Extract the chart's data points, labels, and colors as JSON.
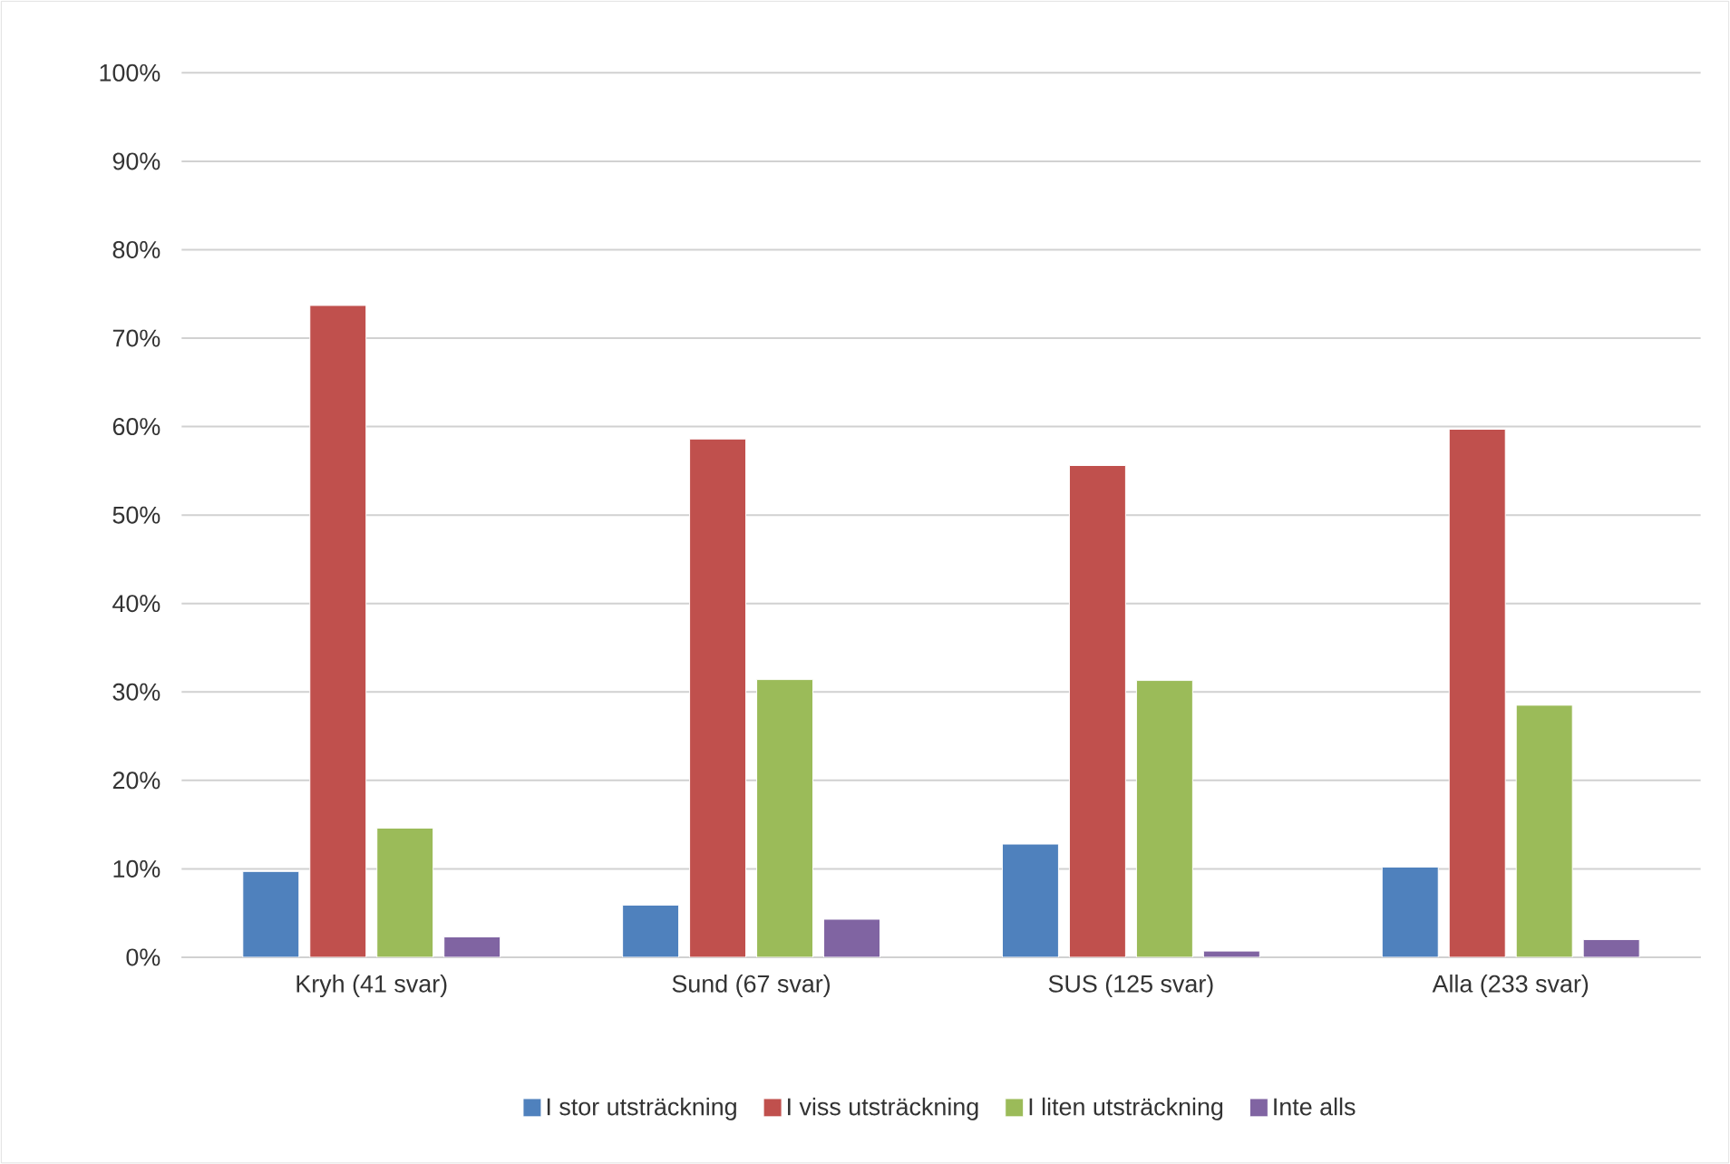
{
  "chart_data": {
    "type": "bar",
    "categories": [
      "Kryh (41 svar)",
      "Sund (67 svar)",
      "SUS (125 svar)",
      "Alla (233 svar)"
    ],
    "series": [
      {
        "name": "I stor utsträckning",
        "color": "#4f81bd",
        "values": [
          9.7,
          5.9,
          12.8,
          10.2
        ]
      },
      {
        "name": "I viss utsträckning",
        "color": "#c0504d",
        "values": [
          73.7,
          58.6,
          55.6,
          59.7
        ]
      },
      {
        "name": "I liten utsträckning",
        "color": "#9bbb59",
        "values": [
          14.6,
          31.4,
          31.3,
          28.5
        ]
      },
      {
        "name": "Inte alls",
        "color": "#8064a2",
        "values": [
          2.3,
          4.3,
          0.7,
          2.0
        ]
      }
    ],
    "ylim": [
      0,
      100
    ],
    "yticks": [
      {
        "value": 0,
        "label": "0%"
      },
      {
        "value": 10,
        "label": "10%"
      },
      {
        "value": 20,
        "label": "20%"
      },
      {
        "value": 30,
        "label": "30%"
      },
      {
        "value": 40,
        "label": "40%"
      },
      {
        "value": 50,
        "label": "50%"
      },
      {
        "value": 60,
        "label": "60%"
      },
      {
        "value": 70,
        "label": "70%"
      },
      {
        "value": 80,
        "label": "80%"
      },
      {
        "value": 90,
        "label": "90%"
      },
      {
        "value": 100,
        "label": "100%"
      }
    ],
    "grid": "y",
    "legend": "bottom"
  }
}
